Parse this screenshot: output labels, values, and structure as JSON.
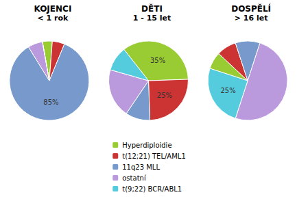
{
  "chart_data": [
    {
      "type": "pie",
      "title": "KOJENCI",
      "subtitle": "< 1 rok",
      "categories": [
        "Hyperdiploidie",
        "t(12;21) TEL/AML1",
        "11q23 MLL",
        "ostatní",
        "t(9;22) BCR/ABL1"
      ],
      "values": [
        4,
        5,
        85,
        6,
        0.001
      ],
      "value_labels": [
        null,
        null,
        "85%",
        null,
        null
      ],
      "colors": [
        "#99cc33",
        "#cc3333",
        "#7799cc",
        "#bb99dd",
        "#55ccdd"
      ],
      "legend": "bottom"
    },
    {
      "type": "pie",
      "title": "DĚTI",
      "subtitle": "1 - 15 let",
      "categories": [
        "Hyperdiploidie",
        "t(12;21) TEL/AML1",
        "11q23 MLL",
        "ostatní",
        "t(9;22) BCR/ABL1"
      ],
      "values": [
        35,
        25,
        10,
        20,
        10
      ],
      "value_labels": [
        "35%",
        "25%",
        null,
        null,
        null
      ],
      "colors": [
        "#99cc33",
        "#cc3333",
        "#7799cc",
        "#bb99dd",
        "#55ccdd"
      ],
      "legend": "bottom"
    },
    {
      "type": "pie",
      "title": "DOSPĚLÍ",
      "subtitle": "> 16 let",
      "categories": [
        "Hyperdiploidie",
        "t(12;21) TEL/AML1",
        "11q23 MLL",
        "ostatní",
        "t(9;22) BCR/ABL1"
      ],
      "values": [
        7,
        8,
        10,
        50,
        25
      ],
      "value_labels": [
        null,
        null,
        null,
        null,
        "25%"
      ],
      "colors": [
        "#99cc33",
        "#cc3333",
        "#7799cc",
        "#bb99dd",
        "#55ccdd"
      ],
      "legend": "bottom"
    }
  ]
}
